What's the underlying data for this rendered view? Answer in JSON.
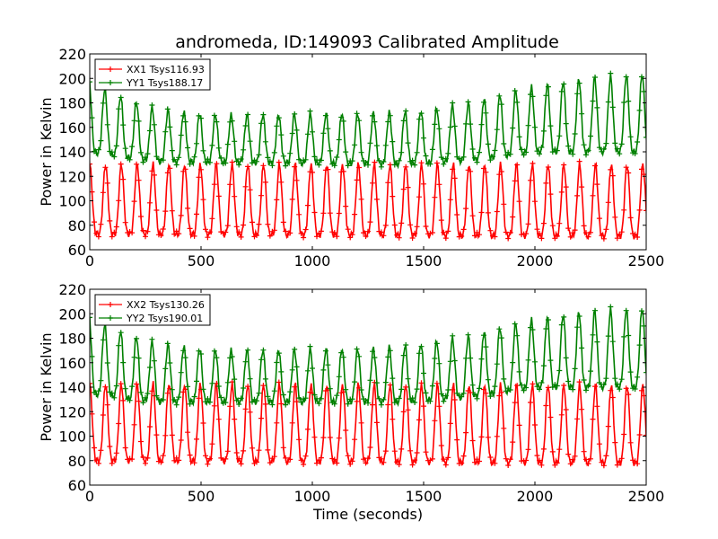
{
  "title": "andromeda, ID:149093 Calibrated Amplitude",
  "chart_data": [
    {
      "type": "line",
      "ylabel": "Power in Kelvin",
      "xlabel": "",
      "xlim": [
        0,
        2500
      ],
      "ylim": [
        60,
        220
      ],
      "xticks": [
        "0",
        "500",
        "1000",
        "1500",
        "2000",
        "2500"
      ],
      "yticks": [
        "60",
        "80",
        "100",
        "120",
        "140",
        "160",
        "180",
        "200",
        "220"
      ],
      "legend_position": "upper-left",
      "series": [
        {
          "name": "XX1 Tsys116.93",
          "color": "#ff0000",
          "period": 71,
          "min": [
            [
              0,
              73
            ],
            [
              2500,
              71
            ]
          ],
          "max": [
            [
              0,
              130
            ],
            [
              2500,
              130
            ]
          ]
        },
        {
          "name": "YY1 Tsys188.17",
          "color": "#008000",
          "period": 71,
          "min": [
            [
              0,
              140
            ],
            [
              300,
              132
            ],
            [
              1400,
              130
            ],
            [
              1700,
              133
            ],
            [
              2000,
              140
            ],
            [
              2500,
              140
            ]
          ],
          "max": [
            [
              0,
              200
            ],
            [
              80,
              190
            ],
            [
              300,
              175
            ],
            [
              600,
              170
            ],
            [
              1000,
              171
            ],
            [
              1300,
              172
            ],
            [
              1500,
              174
            ],
            [
              1700,
              180
            ],
            [
              1900,
              190
            ],
            [
              2200,
              200
            ],
            [
              2500,
              204
            ]
          ]
        }
      ]
    },
    {
      "type": "line",
      "ylabel": "Power in Kelvin",
      "xlabel": "Time (seconds)",
      "xlim": [
        0,
        2500
      ],
      "ylim": [
        60,
        220
      ],
      "xticks": [
        "0",
        "500",
        "1000",
        "1500",
        "2000",
        "2500"
      ],
      "yticks": [
        "60",
        "80",
        "100",
        "120",
        "140",
        "160",
        "180",
        "200",
        "220"
      ],
      "legend_position": "upper-left",
      "series": [
        {
          "name": "XX2 Tsys130.26",
          "color": "#ff0000",
          "period": 71,
          "min": [
            [
              0,
              80
            ],
            [
              2500,
              78
            ]
          ],
          "max": [
            [
              0,
              143
            ],
            [
              2500,
              142
            ]
          ]
        },
        {
          "name": "YY2 Tsys190.01",
          "color": "#008000",
          "period": 71,
          "min": [
            [
              0,
              135
            ],
            [
              300,
              128
            ],
            [
              1400,
              128
            ],
            [
              1700,
              132
            ],
            [
              2000,
              140
            ],
            [
              2500,
              140
            ]
          ],
          "max": [
            [
              0,
              200
            ],
            [
              80,
              190
            ],
            [
              300,
              176
            ],
            [
              600,
              170
            ],
            [
              1000,
              171
            ],
            [
              1300,
              172
            ],
            [
              1500,
              176
            ],
            [
              1700,
              182
            ],
            [
              1900,
              192
            ],
            [
              2200,
              202
            ],
            [
              2500,
              205
            ]
          ]
        }
      ]
    }
  ]
}
